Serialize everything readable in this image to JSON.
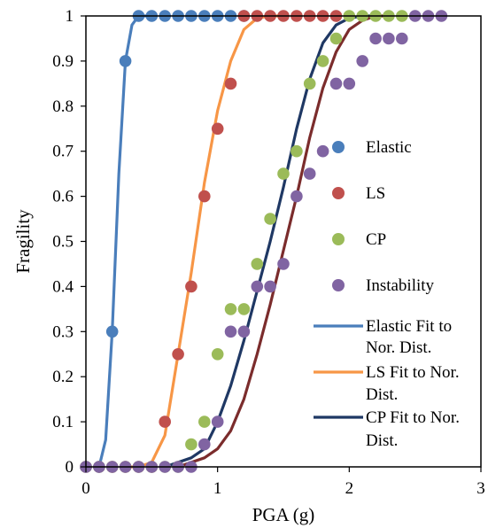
{
  "chart_data": {
    "type": "scatter",
    "title": "",
    "xlabel": "PGA (g)",
    "ylabel": "Fragility",
    "xlim": [
      0,
      3
    ],
    "ylim": [
      0,
      1
    ],
    "x_ticks": [
      "0",
      "1",
      "2",
      "3"
    ],
    "y_ticks": [
      "0",
      "0.1",
      "0.2",
      "0.3",
      "0.4",
      "0.5",
      "0.6",
      "0.7",
      "0.8",
      "0.9",
      "1"
    ],
    "grid": false,
    "legend_position": "right",
    "series": [
      {
        "name": "Elastic",
        "kind": "scatter",
        "color": "#4A7EBB",
        "points": [
          [
            0,
            0
          ],
          [
            0.1,
            0
          ],
          [
            0.2,
            0.3
          ],
          [
            0.3,
            0.9
          ],
          [
            0.4,
            1
          ],
          [
            0.5,
            1
          ],
          [
            0.6,
            1
          ],
          [
            0.7,
            1
          ],
          [
            0.8,
            1
          ],
          [
            0.9,
            1
          ],
          [
            1.0,
            1
          ],
          [
            1.1,
            1
          ],
          [
            1.2,
            1
          ]
        ]
      },
      {
        "name": "LS",
        "kind": "scatter",
        "color": "#C0504D",
        "points": [
          [
            0,
            0
          ],
          [
            0.1,
            0
          ],
          [
            0.2,
            0
          ],
          [
            0.3,
            0
          ],
          [
            0.4,
            0
          ],
          [
            0.5,
            0
          ],
          [
            0.6,
            0.1
          ],
          [
            0.7,
            0.25
          ],
          [
            0.8,
            0.4
          ],
          [
            0.9,
            0.6
          ],
          [
            1.0,
            0.75
          ],
          [
            1.1,
            0.85
          ],
          [
            1.2,
            1
          ],
          [
            1.3,
            1
          ],
          [
            1.4,
            1
          ],
          [
            1.5,
            1
          ],
          [
            1.6,
            1
          ],
          [
            1.7,
            1
          ],
          [
            1.8,
            1
          ],
          [
            1.9,
            1
          ]
        ]
      },
      {
        "name": "CP",
        "kind": "scatter",
        "color": "#9BBB59",
        "points": [
          [
            0,
            0
          ],
          [
            0.1,
            0
          ],
          [
            0.2,
            0
          ],
          [
            0.3,
            0
          ],
          [
            0.4,
            0
          ],
          [
            0.5,
            0
          ],
          [
            0.6,
            0
          ],
          [
            0.7,
            0
          ],
          [
            0.8,
            0.05
          ],
          [
            0.9,
            0.1
          ],
          [
            1.0,
            0.25
          ],
          [
            1.1,
            0.35
          ],
          [
            1.2,
            0.35
          ],
          [
            1.3,
            0.45
          ],
          [
            1.4,
            0.55
          ],
          [
            1.5,
            0.65
          ],
          [
            1.6,
            0.7
          ],
          [
            1.7,
            0.85
          ],
          [
            1.8,
            0.9
          ],
          [
            1.9,
            0.95
          ],
          [
            2.0,
            1
          ],
          [
            2.1,
            1
          ],
          [
            2.2,
            1
          ],
          [
            2.3,
            1
          ],
          [
            2.4,
            1
          ]
        ]
      },
      {
        "name": "Instability",
        "kind": "scatter",
        "color": "#8064A2",
        "points": [
          [
            0,
            0
          ],
          [
            0.1,
            0
          ],
          [
            0.2,
            0
          ],
          [
            0.3,
            0
          ],
          [
            0.4,
            0
          ],
          [
            0.5,
            0
          ],
          [
            0.6,
            0
          ],
          [
            0.7,
            0
          ],
          [
            0.8,
            0
          ],
          [
            0.9,
            0.05
          ],
          [
            1.0,
            0.1
          ],
          [
            1.1,
            0.3
          ],
          [
            1.2,
            0.3
          ],
          [
            1.3,
            0.4
          ],
          [
            1.4,
            0.4
          ],
          [
            1.5,
            0.45
          ],
          [
            1.6,
            0.6
          ],
          [
            1.7,
            0.65
          ],
          [
            1.8,
            0.7
          ],
          [
            1.9,
            0.85
          ],
          [
            2.0,
            0.85
          ],
          [
            2.1,
            0.9
          ],
          [
            2.2,
            0.95
          ],
          [
            2.3,
            0.95
          ],
          [
            2.4,
            0.95
          ],
          [
            2.5,
            1
          ],
          [
            2.6,
            1
          ],
          [
            2.7,
            1
          ]
        ]
      },
      {
        "name": "Elastic Fit to Nor. Dist.",
        "kind": "line",
        "color": "#4A7EBB",
        "points": [
          [
            0.1,
            0
          ],
          [
            0.15,
            0.06
          ],
          [
            0.2,
            0.3
          ],
          [
            0.25,
            0.65
          ],
          [
            0.3,
            0.9
          ],
          [
            0.35,
            0.98
          ],
          [
            0.4,
            1
          ],
          [
            0.5,
            1
          ]
        ]
      },
      {
        "name": "LS Fit to Nor. Dist.",
        "kind": "line",
        "color": "#F79646",
        "points": [
          [
            0.3,
            0
          ],
          [
            0.4,
            0
          ],
          [
            0.5,
            0.01
          ],
          [
            0.6,
            0.07
          ],
          [
            0.7,
            0.25
          ],
          [
            0.8,
            0.43
          ],
          [
            0.9,
            0.63
          ],
          [
            1.0,
            0.79
          ],
          [
            1.1,
            0.9
          ],
          [
            1.2,
            0.97
          ],
          [
            1.3,
            0.995
          ],
          [
            1.4,
            1
          ],
          [
            1.5,
            1
          ]
        ]
      },
      {
        "name": "CP Fit to Nor. Dist.",
        "kind": "line",
        "color": "#1F3864",
        "points": [
          [
            0.6,
            0
          ],
          [
            0.8,
            0.02
          ],
          [
            0.9,
            0.04
          ],
          [
            1.0,
            0.1
          ],
          [
            1.1,
            0.18
          ],
          [
            1.2,
            0.28
          ],
          [
            1.3,
            0.39
          ],
          [
            1.4,
            0.5
          ],
          [
            1.5,
            0.62
          ],
          [
            1.6,
            0.75
          ],
          [
            1.7,
            0.86
          ],
          [
            1.8,
            0.94
          ],
          [
            1.9,
            0.98
          ],
          [
            2.0,
            0.995
          ],
          [
            2.1,
            1
          ],
          [
            2.2,
            1
          ]
        ]
      },
      {
        "name": "",
        "kind": "line",
        "color": "#7B2C2C",
        "points": [
          [
            0.7,
            0
          ],
          [
            0.9,
            0.02
          ],
          [
            1.0,
            0.04
          ],
          [
            1.1,
            0.08
          ],
          [
            1.2,
            0.15
          ],
          [
            1.3,
            0.25
          ],
          [
            1.4,
            0.36
          ],
          [
            1.5,
            0.48
          ],
          [
            1.6,
            0.6
          ],
          [
            1.7,
            0.73
          ],
          [
            1.8,
            0.84
          ],
          [
            1.9,
            0.92
          ],
          [
            2.0,
            0.97
          ],
          [
            2.1,
            0.99
          ],
          [
            2.2,
            1
          ],
          [
            2.3,
            1
          ]
        ]
      }
    ]
  },
  "legend": {
    "items": [
      {
        "kind": "marker",
        "color": "#4A7EBB",
        "label": "Elastic"
      },
      {
        "kind": "marker",
        "color": "#C0504D",
        "label": "LS"
      },
      {
        "kind": "marker",
        "color": "#9BBB59",
        "label": "CP"
      },
      {
        "kind": "marker",
        "color": "#8064A2",
        "label": "Instability"
      },
      {
        "kind": "line",
        "color": "#4A7EBB",
        "line1": "Elastic Fit to",
        "line2": "Nor. Dist."
      },
      {
        "kind": "line",
        "color": "#F79646",
        "line1": "LS Fit to Nor.",
        "line2": "Dist."
      },
      {
        "kind": "line",
        "color": "#1F3864",
        "line1": "CP Fit to Nor.",
        "line2": "Dist."
      }
    ]
  }
}
